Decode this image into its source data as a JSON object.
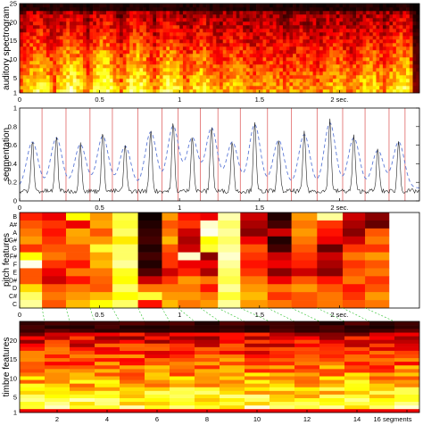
{
  "chart_data": [
    {
      "type": "heatmap",
      "ylabel": "auditory spectrogram",
      "xlim": [
        0,
        2.5
      ],
      "ylim": [
        1,
        25
      ],
      "x_ticks": [
        0,
        0.5,
        1,
        1.5,
        2
      ],
      "x_tick_labels": [
        "0",
        "0.5",
        "1",
        "1.5",
        "2 sec."
      ],
      "y_ticks": [
        1,
        5,
        10,
        15,
        20,
        25
      ],
      "y_tick_labels": [
        "1",
        "5",
        "10",
        "15",
        "20",
        "25"
      ],
      "colormap": "hot",
      "rows": 25,
      "columns": 120
    },
    {
      "type": "line",
      "ylabel": "segmentation",
      "xlim": [
        0,
        2.5
      ],
      "ylim": [
        0,
        1
      ],
      "x_ticks": [
        0,
        0.5,
        1,
        1.5,
        2
      ],
      "x_tick_labels": [
        "0",
        "0.5",
        "1",
        "1.5",
        "2 sec."
      ],
      "y_ticks": [
        0,
        0.2,
        0.4,
        0.6,
        0.8,
        1
      ],
      "y_tick_labels": [
        "0",
        "0.2",
        "0.4",
        "0.6",
        "0.8",
        "1"
      ],
      "boundaries": [
        0.14,
        0.29,
        0.44,
        0.58,
        0.74,
        0.89,
        0.99,
        1.13,
        1.24,
        1.38,
        1.55,
        1.7,
        1.86,
        2.02,
        2.16,
        2.31,
        2.41
      ],
      "peaks": [
        0.08,
        0.23,
        0.38,
        0.52,
        0.66,
        0.82,
        0.96,
        1.08,
        1.2,
        1.33,
        1.47,
        1.62,
        1.78,
        1.94,
        2.09,
        2.24,
        2.37
      ],
      "peak_heights": [
        0.55,
        0.6,
        0.52,
        0.62,
        0.5,
        0.67,
        0.74,
        0.6,
        0.72,
        0.55,
        0.76,
        0.57,
        0.64,
        0.78,
        0.6,
        0.45,
        0.55
      ],
      "series": [
        {
          "style": "solid",
          "color": "#222222"
        },
        {
          "style": "dashed",
          "color": "#5b78d6"
        }
      ],
      "boundary_color": "#e06666"
    },
    {
      "type": "heatmap",
      "ylabel": "pitch features",
      "y_tick_labels": [
        "B",
        "A#",
        "A",
        "G#",
        "G",
        "F#",
        "F",
        "E",
        "D#",
        "D",
        "C#",
        "C"
      ],
      "x_ticks": [
        0,
        0.5,
        1,
        1.5,
        2
      ],
      "x_tick_labels": [
        "0",
        "0.5",
        "1",
        "1.5",
        "2 sec."
      ],
      "colormap": "hot",
      "segments": 16,
      "values": [
        [
          0.42,
          0.35,
          0.75,
          0.6,
          0.82,
          0.02,
          0.6,
          0.4,
          0.35,
          0.92,
          0.3,
          0.05,
          0.6,
          0.9,
          0.3,
          0.2
        ],
        [
          0.5,
          0.45,
          0.35,
          0.62,
          0.8,
          0.05,
          0.5,
          0.45,
          0.95,
          0.85,
          0.25,
          0.1,
          0.55,
          0.45,
          0.25,
          0.15
        ],
        [
          0.55,
          0.4,
          0.62,
          0.5,
          0.85,
          0.08,
          0.55,
          0.3,
          0.98,
          0.9,
          0.2,
          0.3,
          0.6,
          0.4,
          0.2,
          0.5
        ],
        [
          0.6,
          0.45,
          0.6,
          0.6,
          0.72,
          0.1,
          0.65,
          0.25,
          0.75,
          0.85,
          0.35,
          0.05,
          0.55,
          0.35,
          0.3,
          0.55
        ],
        [
          0.45,
          0.5,
          0.5,
          0.8,
          0.85,
          0.05,
          0.5,
          0.3,
          0.8,
          0.9,
          0.5,
          0.1,
          0.5,
          0.15,
          0.45,
          0.45
        ],
        [
          0.75,
          0.55,
          0.5,
          0.62,
          0.85,
          0.1,
          0.45,
          0.95,
          0.2,
          0.95,
          0.45,
          0.3,
          0.45,
          0.3,
          0.55,
          0.6
        ],
        [
          0.98,
          0.45,
          0.4,
          0.65,
          0.9,
          0.05,
          0.45,
          0.35,
          0.35,
          0.9,
          0.4,
          0.35,
          0.42,
          0.25,
          0.45,
          0.5
        ],
        [
          0.5,
          0.35,
          0.55,
          0.55,
          0.78,
          0.12,
          0.3,
          0.42,
          0.25,
          0.85,
          0.45,
          0.2,
          0.3,
          0.2,
          0.5,
          0.55
        ],
        [
          0.5,
          0.3,
          0.4,
          0.52,
          0.75,
          0.3,
          0.45,
          0.6,
          0.55,
          0.82,
          0.55,
          0.35,
          0.5,
          0.4,
          0.55,
          0.45
        ],
        [
          0.7,
          0.5,
          0.55,
          0.5,
          0.85,
          0.55,
          0.55,
          0.55,
          0.4,
          0.9,
          0.6,
          0.55,
          0.6,
          0.5,
          0.4,
          0.5
        ],
        [
          0.85,
          0.55,
          0.6,
          0.65,
          0.75,
          0.8,
          0.6,
          0.6,
          0.55,
          0.8,
          0.65,
          0.45,
          0.5,
          0.55,
          0.45,
          0.6
        ],
        [
          0.9,
          0.5,
          0.65,
          0.75,
          0.85,
          0.4,
          0.65,
          0.55,
          0.6,
          0.9,
          0.6,
          0.55,
          0.5,
          0.55,
          0.5,
          0.55
        ]
      ]
    },
    {
      "type": "heatmap",
      "ylabel": "timbre features",
      "ylim": [
        1,
        25
      ],
      "x_ticks": [
        2,
        4,
        6,
        8,
        10,
        12,
        14,
        16
      ],
      "x_tick_labels": [
        "2",
        "4",
        "6",
        "8",
        "10",
        "12",
        "14",
        "16 segments"
      ],
      "y_ticks": [
        1,
        5,
        10,
        15,
        20
      ],
      "y_tick_labels": [
        "1",
        "5",
        "10",
        "15",
        "20"
      ],
      "colormap": "hot",
      "segments": 16,
      "rows": 25
    }
  ]
}
